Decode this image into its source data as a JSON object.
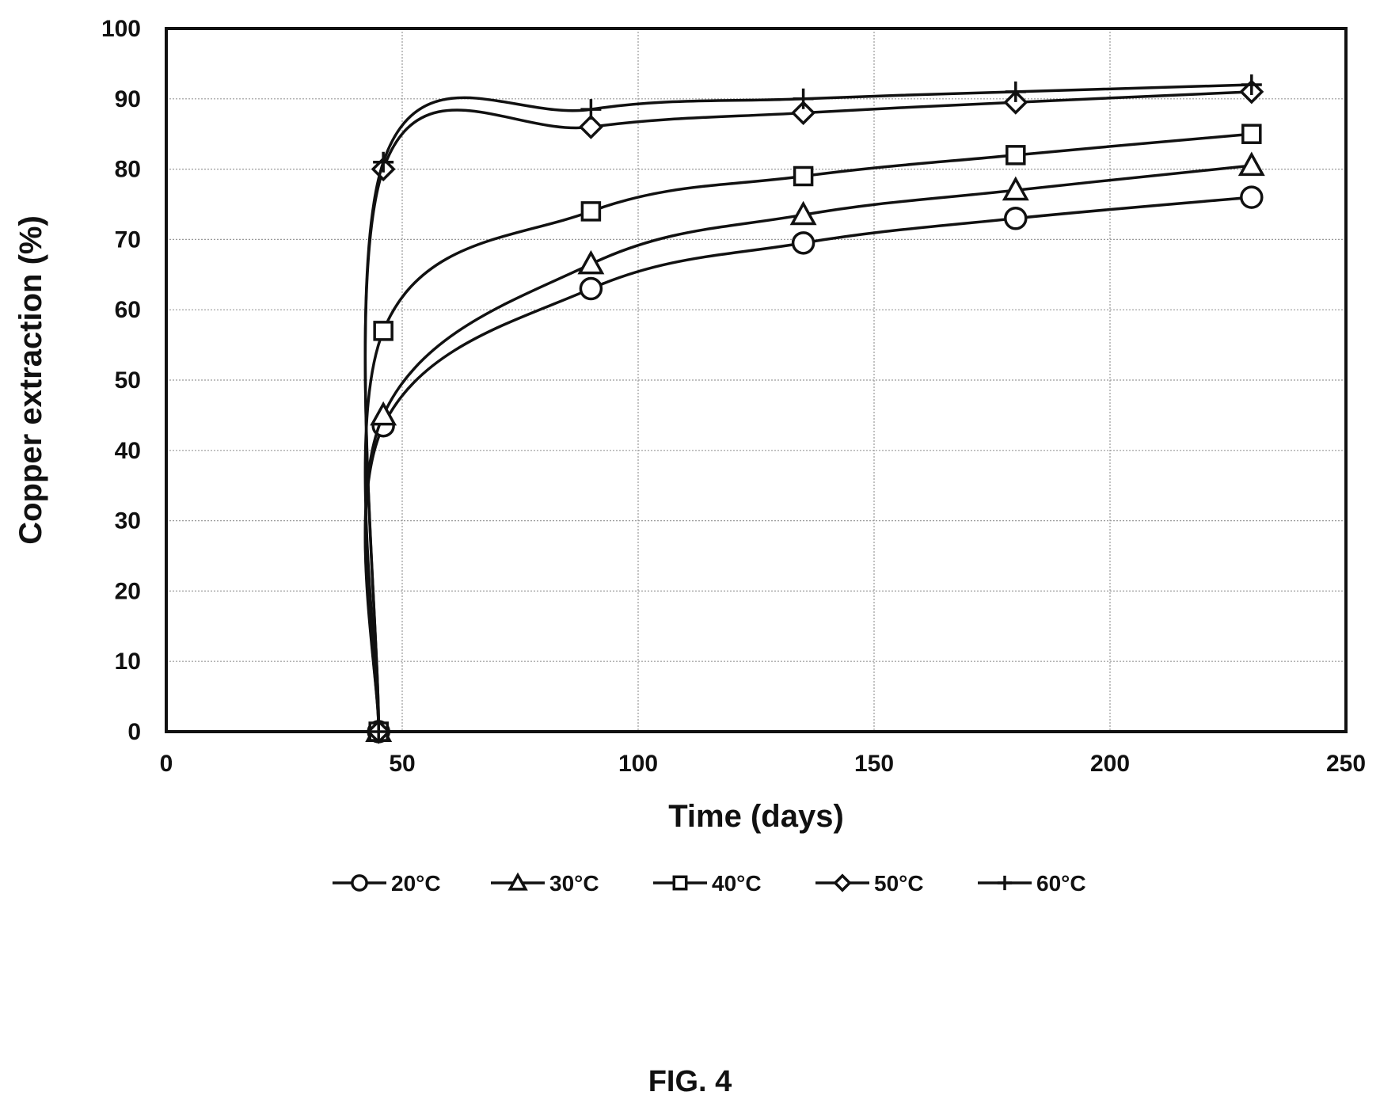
{
  "figure": {
    "caption": "FIG. 4"
  },
  "chart_data": {
    "type": "line",
    "xlabel": "Time (days)",
    "ylabel": "Copper extraction (%)",
    "xlim": [
      0,
      250
    ],
    "ylim": [
      0,
      100
    ],
    "xticks": [
      0,
      50,
      100,
      150,
      200,
      250
    ],
    "yticks": [
      0,
      10,
      20,
      30,
      40,
      50,
      60,
      70,
      80,
      90,
      100
    ],
    "grid": true,
    "legend_position": "bottom",
    "line_color": "#111111",
    "x": [
      45,
      46,
      90,
      135,
      180,
      230
    ],
    "series": [
      {
        "name": "20°C",
        "marker": "circle",
        "values": [
          0,
          43.5,
          63,
          69.5,
          73,
          76
        ]
      },
      {
        "name": "30°C",
        "marker": "triangle",
        "values": [
          0,
          45,
          66.5,
          73.5,
          77,
          80.5
        ]
      },
      {
        "name": "40°C",
        "marker": "square",
        "values": [
          0,
          57,
          74,
          79,
          82,
          85
        ]
      },
      {
        "name": "50°C",
        "marker": "diamond",
        "values": [
          0,
          80,
          86,
          88,
          89.5,
          91
        ]
      },
      {
        "name": "60°C",
        "marker": "plus",
        "values": [
          0,
          81,
          88.5,
          90,
          91,
          92
        ]
      }
    ]
  }
}
